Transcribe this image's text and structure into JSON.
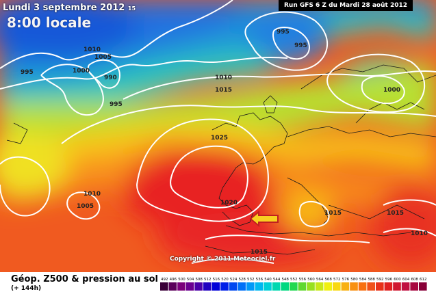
{
  "header": {
    "date_line": "Lundi 3 septembre 2012",
    "hour_fragment": "15",
    "time_line": "8:00 locale",
    "run_info": "Run GFS 6 Z du Mardi 28 août 2012"
  },
  "isobar_labels": [
    "995",
    "1010",
    "1005",
    "1000",
    "990",
    "995",
    "1010",
    "1015",
    "995",
    "995",
    "1000",
    "1025",
    "1010",
    "1005",
    "1020",
    "1015",
    "1015",
    "1010",
    "1015"
  ],
  "footer": {
    "title": "Géop. Z500 & pression au sol",
    "lead_time": "(+ 144h)",
    "copyright": "Copyright © 2011 Meteociel.fr"
  },
  "legend": {
    "ticks": [
      "492",
      "496",
      "500",
      "504",
      "508",
      "512",
      "516",
      "520",
      "524",
      "528",
      "532",
      "536",
      "540",
      "544",
      "548",
      "552",
      "556",
      "560",
      "564",
      "568",
      "572",
      "576",
      "580",
      "584",
      "588",
      "592",
      "596",
      "600",
      "604",
      "608",
      "612"
    ],
    "colors": [
      "#3a0038",
      "#5a005a",
      "#7a007a",
      "#6a0090",
      "#4a00a8",
      "#2000c0",
      "#0000d8",
      "#0020e8",
      "#0048f0",
      "#0070f8",
      "#0098f8",
      "#00b8f0",
      "#00d0d8",
      "#00d8b0",
      "#00d880",
      "#20d850",
      "#60d830",
      "#98e020",
      "#c8e818",
      "#f0f010",
      "#f8d810",
      "#f8b010",
      "#f89010",
      "#f87010",
      "#f05018",
      "#e83018",
      "#e02020",
      "#d01830",
      "#c01040",
      "#a80840",
      "#880038"
    ],
    "arrow_color": "#f8d020"
  }
}
